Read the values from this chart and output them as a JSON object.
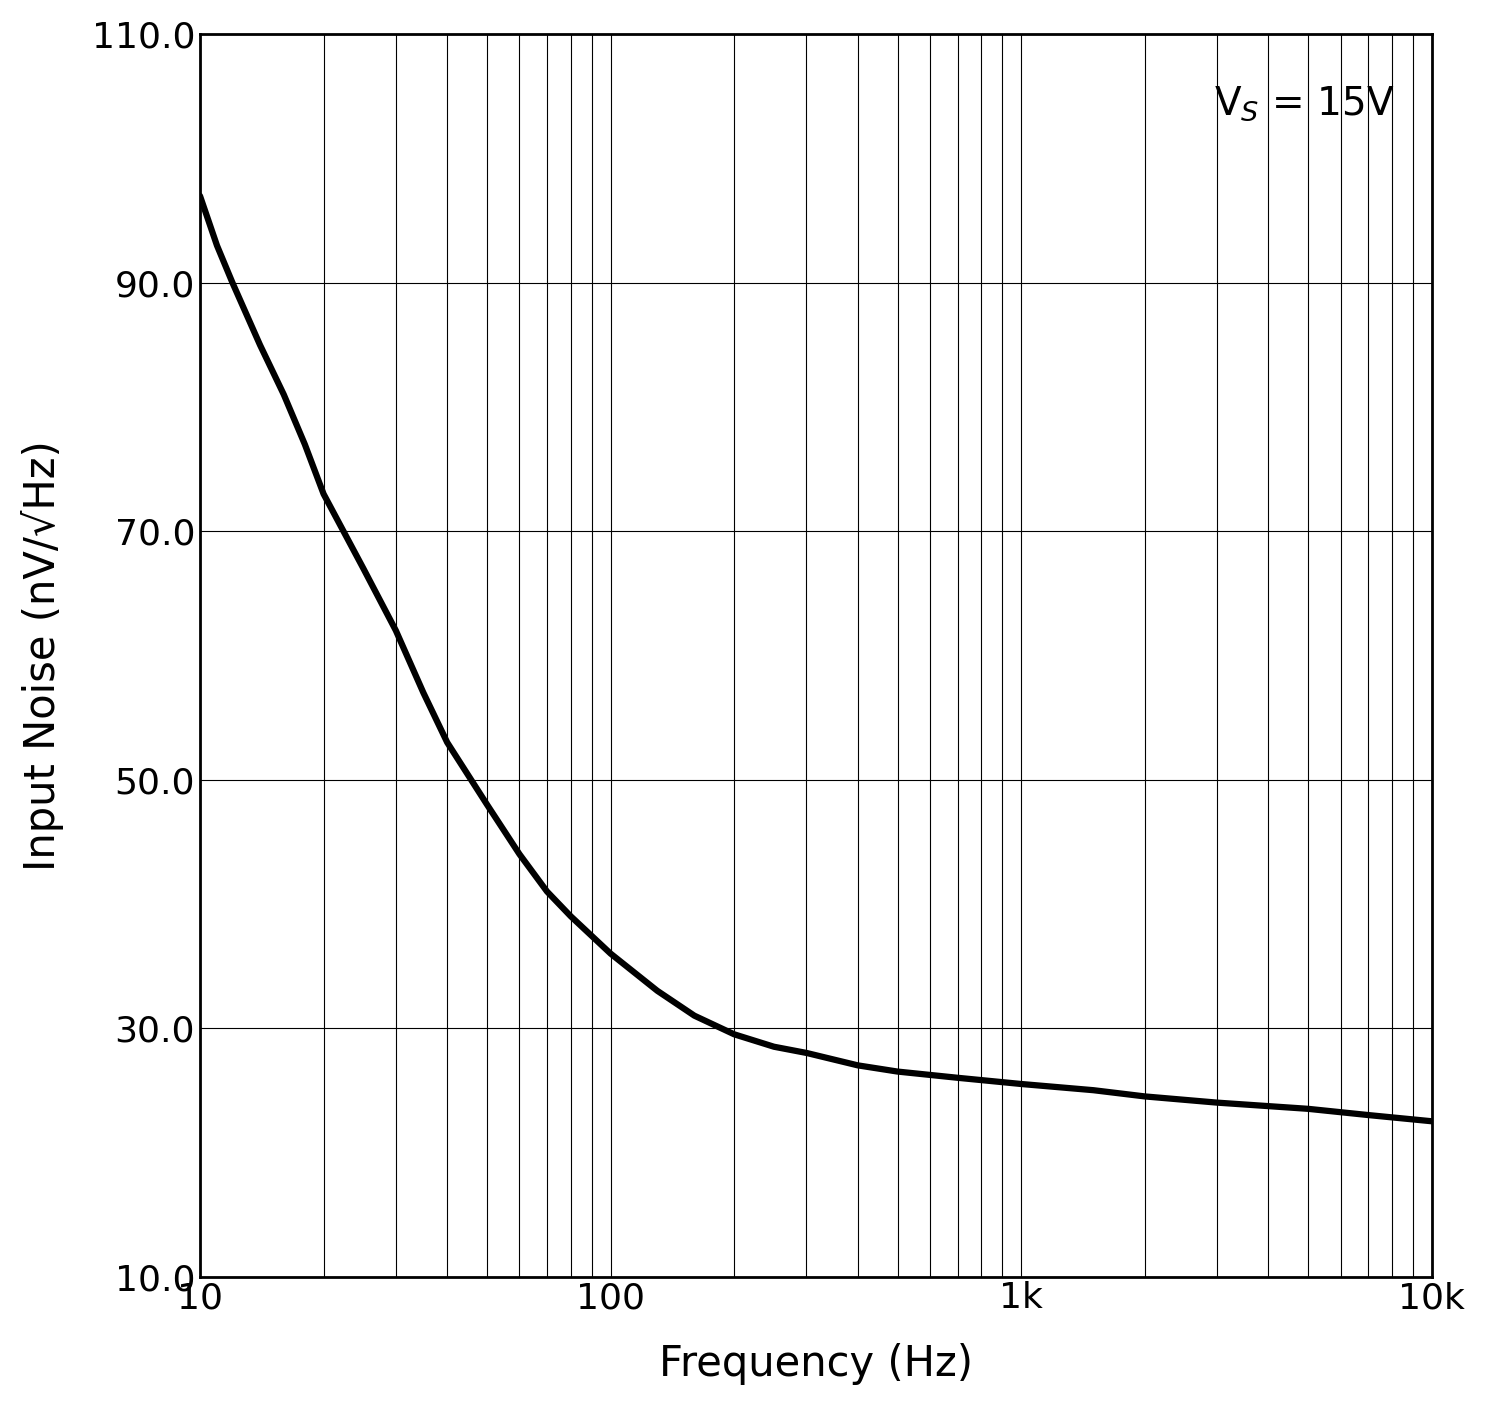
{
  "title": "",
  "xlabel": "Frequency (Hz)",
  "ylabel": "Input Noise (nV/√Hz)",
  "xmin": 10,
  "xmax": 10000,
  "ymin": 10.0,
  "ymax": 110.0,
  "yticks": [
    10.0,
    30.0,
    50.0,
    70.0,
    90.0,
    110.0
  ],
  "xtick_labels": [
    "10",
    "100",
    "1k",
    "10k"
  ],
  "xtick_positions": [
    10,
    100,
    1000,
    10000
  ],
  "curve_color": "#000000",
  "curve_linewidth": 4.5,
  "background_color": "#ffffff",
  "grid_color": "#000000",
  "grid_linewidth": 0.8,
  "annotation_text": "V$_S$ = 15V",
  "annotation_fontsize": 28,
  "xlabel_fontsize": 30,
  "ylabel_fontsize": 30,
  "tick_fontsize": 26,
  "curve_x": [
    10,
    11,
    12,
    14,
    16,
    18,
    20,
    25,
    30,
    35,
    40,
    50,
    60,
    70,
    80,
    100,
    130,
    160,
    200,
    250,
    300,
    400,
    500,
    700,
    1000,
    1500,
    2000,
    3000,
    5000,
    7000,
    10000
  ],
  "curve_y": [
    97,
    93,
    90,
    85,
    81,
    77,
    73,
    67,
    62,
    57,
    53,
    48,
    44,
    41,
    39,
    36,
    33,
    31,
    29.5,
    28.5,
    28,
    27,
    26.5,
    26,
    25.5,
    25,
    24.5,
    24,
    23.5,
    23,
    22.5
  ]
}
